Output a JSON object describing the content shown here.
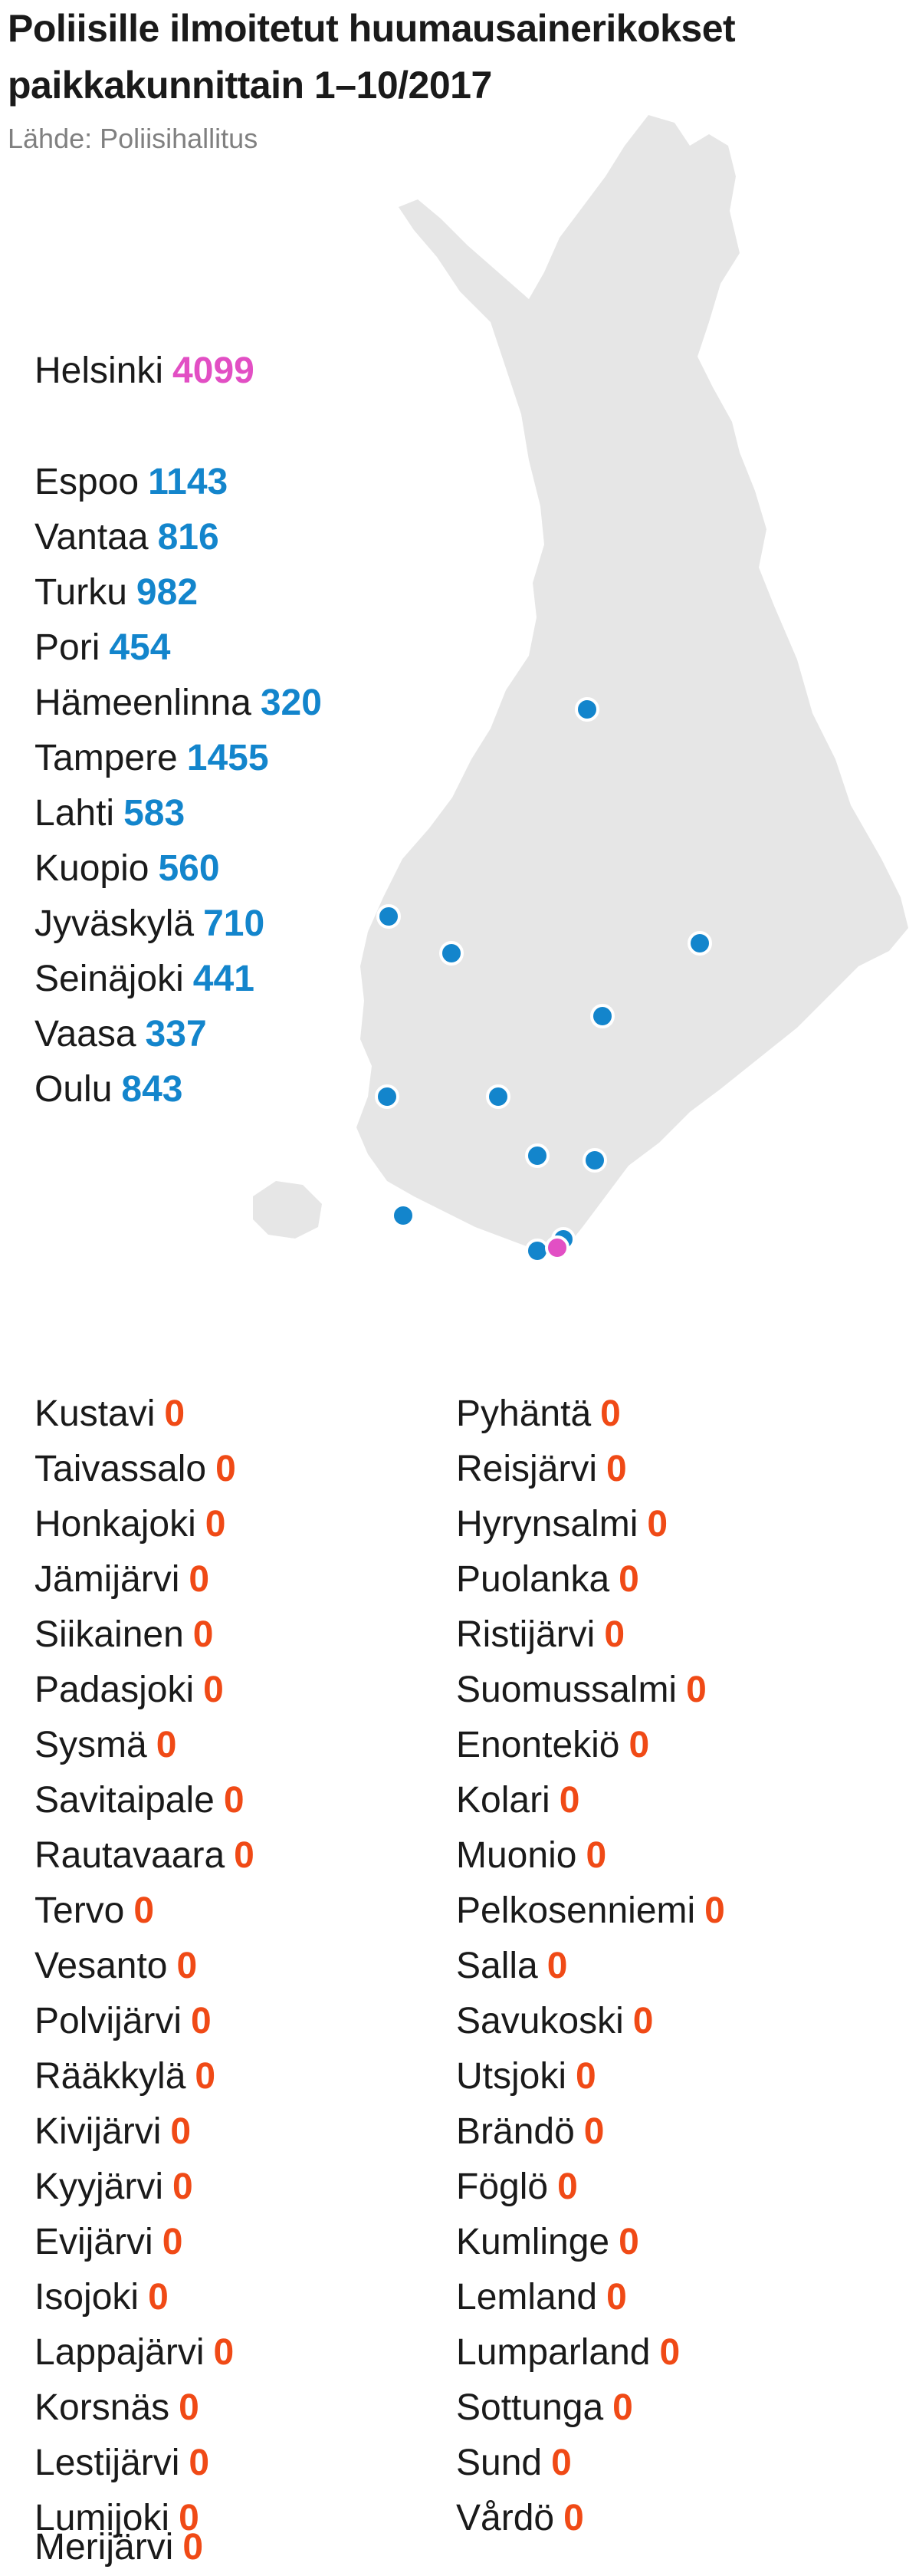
{
  "header": {
    "title_line1": "Poliisille ilmoitetut huumausainerikokset",
    "title_line2": "paikkakunnittain 1–10/2017",
    "source": "Lähde: Poliisihallitus"
  },
  "colors": {
    "land": "#e6e6e6",
    "highlight": "#e24fc4",
    "city": "#1385cc",
    "zero": "#f04a16"
  },
  "highlight_city": {
    "name": "Helsinki",
    "value": "4099"
  },
  "cities": [
    {
      "name": "Espoo",
      "value": "1143"
    },
    {
      "name": "Vantaa",
      "value": "816"
    },
    {
      "name": "Turku",
      "value": "982"
    },
    {
      "name": "Pori",
      "value": "454"
    },
    {
      "name": "Hämeenlinna",
      "value": "320"
    },
    {
      "name": "Tampere",
      "value": "1455"
    },
    {
      "name": "Lahti",
      "value": "583"
    },
    {
      "name": "Kuopio",
      "value": "560"
    },
    {
      "name": "Jyväskylä",
      "value": "710"
    },
    {
      "name": "Seinäjoki",
      "value": "441"
    },
    {
      "name": "Vaasa",
      "value": "337"
    },
    {
      "name": "Oulu",
      "value": "843"
    }
  ],
  "zero_left": [
    {
      "name": "Kustavi",
      "value": "0"
    },
    {
      "name": "Taivassalo",
      "value": "0"
    },
    {
      "name": "Honkajoki",
      "value": "0"
    },
    {
      "name": "Jämijärvi",
      "value": "0"
    },
    {
      "name": "Siikainen",
      "value": "0"
    },
    {
      "name": "Padasjoki",
      "value": "0"
    },
    {
      "name": "Sysmä",
      "value": "0"
    },
    {
      "name": "Savitaipale",
      "value": "0"
    },
    {
      "name": "Rautavaara",
      "value": "0"
    },
    {
      "name": "Tervo",
      "value": "0"
    },
    {
      "name": "Vesanto",
      "value": "0"
    },
    {
      "name": "Polvijärvi",
      "value": "0"
    },
    {
      "name": "Rääkkylä",
      "value": "0"
    },
    {
      "name": "Kivijärvi",
      "value": "0"
    },
    {
      "name": "Kyyjärvi",
      "value": "0"
    },
    {
      "name": "Evijärvi",
      "value": "0"
    },
    {
      "name": "Isojoki",
      "value": "0"
    },
    {
      "name": "Lappajärvi",
      "value": "0"
    },
    {
      "name": "Korsnäs",
      "value": "0"
    },
    {
      "name": "Lestijärvi",
      "value": "0"
    },
    {
      "name": "Lumijoki",
      "value": "0"
    },
    {
      "name": "Merijärvi",
      "value": "0"
    }
  ],
  "zero_right": [
    {
      "name": "Pyhäntä",
      "value": "0"
    },
    {
      "name": "Reisjärvi",
      "value": "0"
    },
    {
      "name": "Hyrynsalmi",
      "value": "0"
    },
    {
      "name": "Puolanka",
      "value": "0"
    },
    {
      "name": "Ristijärvi",
      "value": "0"
    },
    {
      "name": "Suomussalmi",
      "value": "0"
    },
    {
      "name": "Enontekiö",
      "value": "0"
    },
    {
      "name": "Kolari",
      "value": "0"
    },
    {
      "name": "Muonio",
      "value": "0"
    },
    {
      "name": "Pelkosenniemi",
      "value": "0"
    },
    {
      "name": "Salla",
      "value": "0"
    },
    {
      "name": "Savukoski",
      "value": "0"
    },
    {
      "name": "Utsjoki",
      "value": "0"
    },
    {
      "name": "Brändö",
      "value": "0"
    },
    {
      "name": "Föglö",
      "value": "0"
    },
    {
      "name": "Kumlinge",
      "value": "0"
    },
    {
      "name": "Lemland",
      "value": "0"
    },
    {
      "name": "Lumparland",
      "value": "0"
    },
    {
      "name": "Sottunga",
      "value": "0"
    },
    {
      "name": "Sund",
      "value": "0"
    },
    {
      "name": "Vårdö",
      "value": "0"
    }
  ]
}
